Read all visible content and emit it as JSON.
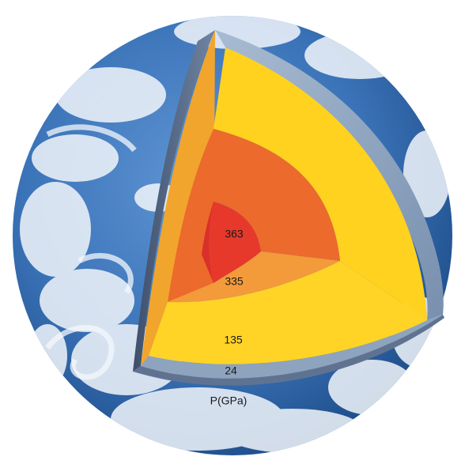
{
  "diagram": {
    "pressure_labels": {
      "inner_core": "363",
      "outer_core": "335",
      "mantle": "135",
      "crust": "24",
      "unit": "P(GPa)"
    },
    "colors": {
      "ocean": "#3b73b8",
      "ocean_deep": "#17457f",
      "cloud": "#f2f6fb",
      "crust": "#8ea3bd",
      "crust_dark": "#5f7391",
      "mantle": "#ffd21f",
      "mantle_face": "#f1a52d",
      "outer_core": "#f39a3a",
      "outer_core_face": "#ec6a2c",
      "inner_core": "#e6392b"
    }
  }
}
